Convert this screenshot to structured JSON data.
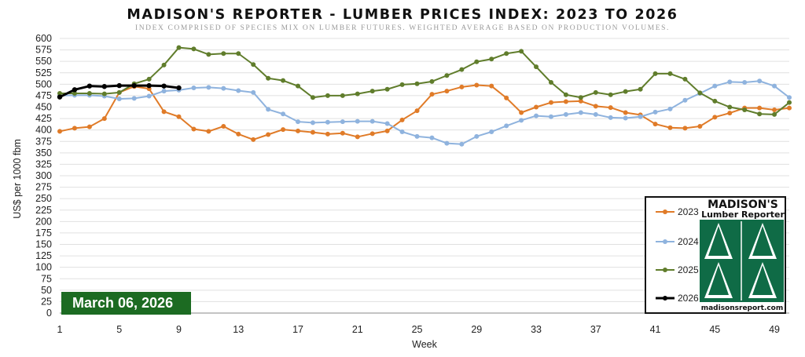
{
  "chart_data": {
    "type": "line",
    "title": "MADISON'S REPORTER - LUMBER PRICES INDEX: 2023 TO 2026",
    "subtitle": "INDEX COMPRISED OF SPECIES MIX ON LUMBER FUTURES. WEIGHTED AVERAGE BASED ON PRODUCTION VOLUMES.",
    "xlabel": "Week",
    "ylabel": "US$ per 1000 fbm",
    "xlim": [
      1,
      50
    ],
    "ylim": [
      0,
      600
    ],
    "y_ticks": [
      0,
      25,
      50,
      75,
      100,
      125,
      150,
      175,
      200,
      225,
      250,
      275,
      300,
      325,
      350,
      375,
      400,
      425,
      450,
      475,
      500,
      525,
      550,
      575,
      600
    ],
    "x_ticks": [
      1,
      5,
      9,
      13,
      17,
      21,
      25,
      29,
      33,
      37,
      41,
      45,
      49
    ],
    "grid": true,
    "legend_position": "bottom-right",
    "series": [
      {
        "name": "2023",
        "color": "#e07b28",
        "x": [
          1,
          2,
          3,
          4,
          5,
          6,
          7,
          8,
          9,
          10,
          11,
          12,
          13,
          14,
          15,
          16,
          17,
          18,
          19,
          20,
          21,
          22,
          23,
          24,
          25,
          26,
          27,
          28,
          29,
          30,
          31,
          32,
          33,
          34,
          35,
          36,
          37,
          38,
          39,
          40,
          41,
          42,
          43,
          44,
          45,
          46,
          47,
          48,
          49,
          50
        ],
        "values": [
          397,
          404,
          407,
          425,
          482,
          495,
          490,
          440,
          429,
          402,
          397,
          408,
          391,
          379,
          390,
          401,
          398,
          395,
          391,
          393,
          385,
          392,
          398,
          422,
          442,
          478,
          485,
          494,
          498,
          496,
          470,
          438,
          450,
          460,
          462,
          463,
          452,
          449,
          438,
          433,
          413,
          405,
          404,
          408,
          428,
          437,
          448,
          448,
          444,
          448
        ]
      },
      {
        "name": "2024",
        "color": "#8fb3de",
        "x": [
          1,
          2,
          3,
          4,
          5,
          6,
          7,
          8,
          9,
          10,
          11,
          12,
          13,
          14,
          15,
          16,
          17,
          18,
          19,
          20,
          21,
          22,
          23,
          24,
          25,
          26,
          27,
          28,
          29,
          30,
          31,
          32,
          33,
          34,
          35,
          36,
          37,
          38,
          39,
          40,
          41,
          42,
          43,
          44,
          45,
          46,
          47,
          48,
          49,
          50
        ],
        "values": [
          475,
          476,
          476,
          474,
          468,
          469,
          474,
          485,
          487,
          492,
          493,
          491,
          486,
          482,
          445,
          435,
          418,
          416,
          417,
          418,
          419,
          419,
          414,
          396,
          386,
          383,
          371,
          369,
          386,
          396,
          409,
          421,
          431,
          429,
          434,
          438,
          434,
          427,
          426,
          429,
          439,
          446,
          465,
          480,
          496,
          505,
          504,
          507,
          496,
          471
        ]
      },
      {
        "name": "2025",
        "color": "#607d2c",
        "x": [
          1,
          2,
          3,
          4,
          5,
          6,
          7,
          8,
          9,
          10,
          11,
          12,
          13,
          14,
          15,
          16,
          17,
          18,
          19,
          20,
          21,
          22,
          23,
          24,
          25,
          26,
          27,
          28,
          29,
          30,
          31,
          32,
          33,
          34,
          35,
          36,
          37,
          38,
          39,
          40,
          41,
          42,
          43,
          44,
          45,
          46,
          47,
          48,
          49,
          50
        ],
        "values": [
          480,
          480,
          480,
          479,
          482,
          501,
          511,
          542,
          580,
          577,
          565,
          567,
          567,
          543,
          513,
          508,
          496,
          471,
          475,
          475,
          479,
          485,
          489,
          499,
          501,
          506,
          519,
          532,
          549,
          555,
          567,
          572,
          538,
          504,
          477,
          471,
          482,
          477,
          484,
          489,
          523,
          523,
          511,
          481,
          463,
          450,
          444,
          435,
          434,
          460
        ]
      },
      {
        "name": "2026",
        "color": "#000000",
        "x": [
          1,
          2,
          3,
          4,
          5,
          6,
          7,
          8,
          9
        ],
        "values": [
          472,
          488,
          496,
          495,
          497,
          497,
          497,
          496,
          492
        ]
      }
    ]
  },
  "date_badge": "March 06, 2026",
  "logo": {
    "line1": "MADISON'S",
    "line2": "Lumber Reporter",
    "url": "madisonsreport.com",
    "color": "#0f6b46"
  }
}
